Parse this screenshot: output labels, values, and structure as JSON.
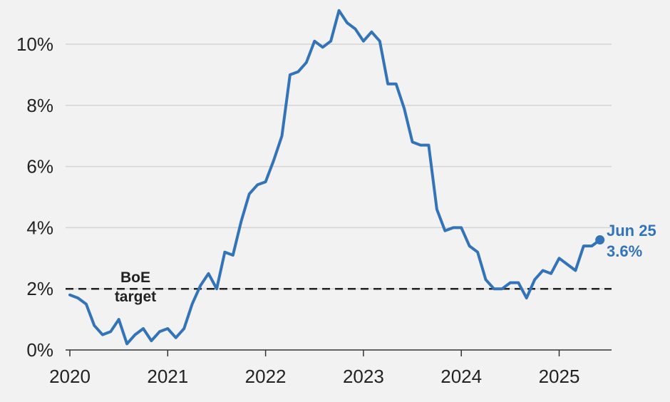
{
  "chart_data": {
    "type": "line",
    "title": "",
    "xlabel": "",
    "ylabel": "",
    "x_tick_labels": [
      "2020",
      "2021",
      "2022",
      "2023",
      "2024",
      "2025"
    ],
    "y_tick_labels": [
      "0%",
      "2%",
      "4%",
      "6%",
      "8%",
      "10%"
    ],
    "y_ticks": [
      0,
      2,
      4,
      6,
      8,
      10
    ],
    "ylim": [
      0,
      11.2
    ],
    "xlim": [
      "2020-01",
      "2025-08"
    ],
    "grid": true,
    "series": [
      {
        "color": "#3373b8",
        "x": [
          "2020-01",
          "2020-02",
          "2020-03",
          "2020-04",
          "2020-05",
          "2020-06",
          "2020-07",
          "2020-08",
          "2020-09",
          "2020-10",
          "2020-11",
          "2020-12",
          "2021-01",
          "2021-02",
          "2021-03",
          "2021-04",
          "2021-05",
          "2021-06",
          "2021-07",
          "2021-08",
          "2021-09",
          "2021-10",
          "2021-11",
          "2021-12",
          "2022-01",
          "2022-02",
          "2022-03",
          "2022-04",
          "2022-05",
          "2022-06",
          "2022-07",
          "2022-08",
          "2022-09",
          "2022-10",
          "2022-11",
          "2022-12",
          "2023-01",
          "2023-02",
          "2023-03",
          "2023-04",
          "2023-05",
          "2023-06",
          "2023-07",
          "2023-08",
          "2023-09",
          "2023-10",
          "2023-11",
          "2023-12",
          "2024-01",
          "2024-02",
          "2024-03",
          "2024-04",
          "2024-05",
          "2024-06",
          "2024-07",
          "2024-08",
          "2024-09",
          "2024-10",
          "2024-11",
          "2024-12",
          "2025-01",
          "2025-02",
          "2025-03",
          "2025-04",
          "2025-05",
          "2025-06"
        ],
        "values": [
          1.8,
          1.7,
          1.5,
          0.8,
          0.5,
          0.6,
          1.0,
          0.2,
          0.5,
          0.7,
          0.3,
          0.6,
          0.7,
          0.4,
          0.7,
          1.5,
          2.1,
          2.5,
          2.0,
          3.2,
          3.1,
          4.2,
          5.1,
          5.4,
          5.5,
          6.2,
          7.0,
          9.0,
          9.1,
          9.4,
          10.1,
          9.9,
          10.1,
          11.1,
          10.7,
          10.5,
          10.1,
          10.4,
          10.1,
          8.7,
          8.7,
          7.9,
          6.8,
          6.7,
          6.7,
          4.6,
          3.9,
          4.0,
          4.0,
          3.4,
          3.2,
          2.3,
          2.0,
          2.0,
          2.2,
          2.2,
          1.7,
          2.3,
          2.6,
          2.5,
          3.0,
          2.8,
          2.6,
          3.4,
          3.4,
          3.6
        ]
      }
    ],
    "reference_line": {
      "value": 2,
      "style": "dashed",
      "color": "#222222",
      "label_lines": [
        "BoE",
        "target"
      ]
    },
    "end_annotation": {
      "x": "2025-06",
      "value": 3.6,
      "label_lines": [
        "Jun 25",
        "3.6%"
      ]
    }
  }
}
